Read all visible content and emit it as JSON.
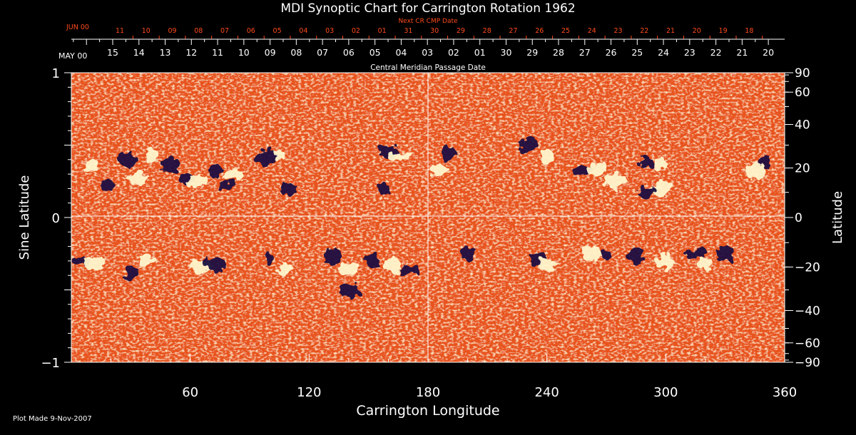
{
  "chart_data": {
    "type": "heatmap",
    "title": "MDI Synoptic Chart for Carrington Rotation 1962",
    "xlabel": "Carrington Longitude",
    "ylabel_left": "Sine Latitude",
    "ylabel_right": "Latitude",
    "xlim": [
      0,
      360
    ],
    "ylim": [
      -1,
      1
    ],
    "x_ticks": [
      60,
      120,
      180,
      240,
      300,
      360
    ],
    "y_ticks_left": [
      {
        "v": 1,
        "label": "1"
      },
      {
        "v": 0,
        "label": "0"
      },
      {
        "v": -1,
        "label": "−1"
      }
    ],
    "y_ticks_right": [
      {
        "deg": 90,
        "label": "90"
      },
      {
        "deg": 60,
        "label": "60"
      },
      {
        "deg": 40,
        "label": "40"
      },
      {
        "deg": 20,
        "label": "20"
      },
      {
        "deg": 0,
        "label": "0"
      },
      {
        "deg": -20,
        "label": "−20"
      },
      {
        "deg": -40,
        "label": "−40"
      },
      {
        "deg": -60,
        "label": "−60"
      },
      {
        "deg": -90,
        "label": "−90"
      }
    ],
    "cmp_axis_label": "Central Meridian Passage Date",
    "cmp_month_start": "MAY 00",
    "cmp_dates": [
      "15",
      "14",
      "13",
      "12",
      "11",
      "10",
      "09",
      "08",
      "07",
      "06",
      "05",
      "04",
      "03",
      "02",
      "01",
      "30",
      "29",
      "28",
      "27",
      "26",
      "25",
      "24",
      "23",
      "22",
      "21",
      "20"
    ],
    "next_cmp_label": "Next CR CMP Date",
    "next_cmp_month_start": "JUN 00",
    "next_cmp_dates": [
      "11",
      "10",
      "09",
      "08",
      "07",
      "06",
      "05",
      "04",
      "03",
      "02",
      "01",
      "31",
      "30",
      "29",
      "28",
      "27",
      "26",
      "25",
      "24",
      "23",
      "22",
      "21",
      "20",
      "19",
      "18"
    ],
    "grid": "crosshair at 180° longitude and 0 sine latitude",
    "plot_made": "Plot Made  9-Nov-2007",
    "colors": {
      "background": "#000000",
      "quiet": "#e8531a",
      "positive": "#fff6cc",
      "negative": "#1a1040",
      "axis": "#ffffff",
      "next_cmp_text": "#ff4a1a"
    },
    "active_regions": [
      {
        "lon": 10,
        "sinlat": 0.36,
        "polarity": "positive"
      },
      {
        "lon": 18,
        "sinlat": 0.22,
        "polarity": "negative"
      },
      {
        "lon": 28,
        "sinlat": 0.4,
        "polarity": "negative"
      },
      {
        "lon": 33,
        "sinlat": 0.27,
        "polarity": "positive"
      },
      {
        "lon": 40,
        "sinlat": 0.44,
        "polarity": "positive"
      },
      {
        "lon": 50,
        "sinlat": 0.36,
        "polarity": "negative"
      },
      {
        "lon": 58,
        "sinlat": 0.27,
        "polarity": "negative"
      },
      {
        "lon": 64,
        "sinlat": 0.25,
        "polarity": "positive"
      },
      {
        "lon": 72,
        "sinlat": 0.32,
        "polarity": "negative"
      },
      {
        "lon": 78,
        "sinlat": 0.22,
        "polarity": "negative"
      },
      {
        "lon": 82,
        "sinlat": 0.3,
        "polarity": "positive"
      },
      {
        "lon": 98,
        "sinlat": 0.42,
        "polarity": "negative"
      },
      {
        "lon": 105,
        "sinlat": 0.43,
        "polarity": "positive"
      },
      {
        "lon": 110,
        "sinlat": 0.2,
        "polarity": "negative"
      },
      {
        "lon": 160,
        "sinlat": 0.45,
        "polarity": "negative"
      },
      {
        "lon": 165,
        "sinlat": 0.42,
        "polarity": "positive"
      },
      {
        "lon": 158,
        "sinlat": 0.2,
        "polarity": "negative"
      },
      {
        "lon": 190,
        "sinlat": 0.45,
        "polarity": "negative"
      },
      {
        "lon": 185,
        "sinlat": 0.33,
        "polarity": "positive"
      },
      {
        "lon": 230,
        "sinlat": 0.5,
        "polarity": "negative"
      },
      {
        "lon": 240,
        "sinlat": 0.42,
        "polarity": "positive"
      },
      {
        "lon": 258,
        "sinlat": 0.32,
        "polarity": "negative"
      },
      {
        "lon": 265,
        "sinlat": 0.33,
        "polarity": "positive"
      },
      {
        "lon": 275,
        "sinlat": 0.25,
        "polarity": "positive"
      },
      {
        "lon": 290,
        "sinlat": 0.38,
        "polarity": "negative"
      },
      {
        "lon": 297,
        "sinlat": 0.36,
        "polarity": "positive"
      },
      {
        "lon": 298,
        "sinlat": 0.2,
        "polarity": "positive"
      },
      {
        "lon": 290,
        "sinlat": 0.17,
        "polarity": "negative"
      },
      {
        "lon": 350,
        "sinlat": 0.38,
        "polarity": "negative"
      },
      {
        "lon": 345,
        "sinlat": 0.32,
        "polarity": "positive"
      },
      {
        "lon": 5,
        "sinlat": -0.3,
        "polarity": "negative"
      },
      {
        "lon": 12,
        "sinlat": -0.32,
        "polarity": "positive"
      },
      {
        "lon": 30,
        "sinlat": -0.37,
        "polarity": "negative"
      },
      {
        "lon": 38,
        "sinlat": -0.3,
        "polarity": "positive"
      },
      {
        "lon": 65,
        "sinlat": -0.34,
        "polarity": "positive"
      },
      {
        "lon": 72,
        "sinlat": -0.32,
        "polarity": "negative"
      },
      {
        "lon": 100,
        "sinlat": -0.28,
        "polarity": "negative"
      },
      {
        "lon": 108,
        "sinlat": -0.36,
        "polarity": "positive"
      },
      {
        "lon": 132,
        "sinlat": -0.27,
        "polarity": "negative"
      },
      {
        "lon": 140,
        "sinlat": -0.35,
        "polarity": "positive"
      },
      {
        "lon": 152,
        "sinlat": -0.3,
        "polarity": "negative"
      },
      {
        "lon": 162,
        "sinlat": -0.33,
        "polarity": "positive"
      },
      {
        "lon": 170,
        "sinlat": -0.37,
        "polarity": "negative"
      },
      {
        "lon": 140,
        "sinlat": -0.5,
        "polarity": "negative"
      },
      {
        "lon": 200,
        "sinlat": -0.25,
        "polarity": "negative"
      },
      {
        "lon": 235,
        "sinlat": -0.28,
        "polarity": "negative"
      },
      {
        "lon": 240,
        "sinlat": -0.33,
        "polarity": "positive"
      },
      {
        "lon": 262,
        "sinlat": -0.25,
        "polarity": "positive"
      },
      {
        "lon": 270,
        "sinlat": -0.26,
        "polarity": "negative"
      },
      {
        "lon": 285,
        "sinlat": -0.27,
        "polarity": "negative"
      },
      {
        "lon": 300,
        "sinlat": -0.3,
        "polarity": "positive"
      },
      {
        "lon": 315,
        "sinlat": -0.25,
        "polarity": "negative"
      },
      {
        "lon": 320,
        "sinlat": -0.32,
        "polarity": "positive"
      },
      {
        "lon": 330,
        "sinlat": -0.25,
        "polarity": "negative"
      }
    ]
  }
}
